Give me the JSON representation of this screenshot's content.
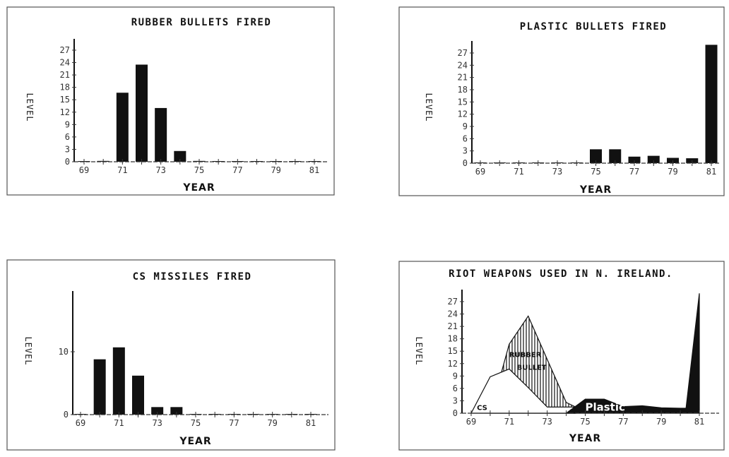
{
  "chart_data": [
    {
      "type": "bar",
      "title": "RUBBER BULLETS FIRED",
      "xlabel": "YEAR",
      "ylabel": "LEVEL",
      "x": [
        69,
        70,
        71,
        72,
        73,
        74,
        75,
        76,
        77,
        78,
        79,
        80,
        81
      ],
      "values": [
        0,
        0.2,
        16.7,
        23.5,
        13,
        2.6,
        0.2,
        0,
        0,
        0,
        0,
        0,
        0
      ],
      "xticks": [
        "69",
        "71",
        "73",
        "75",
        "77",
        "79",
        "81"
      ],
      "yticks": [
        "0",
        "3",
        "6",
        "9",
        "12",
        "15",
        "18",
        "21",
        "24",
        "27"
      ],
      "xlim": [
        69,
        81
      ],
      "ylim": [
        0,
        30
      ],
      "grid": false,
      "color": "#111111"
    },
    {
      "type": "bar",
      "title": "PLASTIC BULLETS FIRED",
      "xlabel": "YEAR",
      "ylabel": "LEVEL",
      "x": [
        69,
        70,
        71,
        72,
        73,
        74,
        75,
        76,
        77,
        78,
        79,
        80,
        81
      ],
      "values": [
        0,
        0,
        0,
        0,
        0.1,
        0.1,
        3.4,
        3.4,
        1.6,
        1.8,
        1.3,
        1.2,
        29
      ],
      "xticks": [
        "69",
        "71",
        "73",
        "75",
        "77",
        "79",
        "81"
      ],
      "yticks": [
        "0",
        "3",
        "6",
        "9",
        "12",
        "15",
        "18",
        "21",
        "24",
        "27"
      ],
      "xlim": [
        69,
        81
      ],
      "ylim": [
        0,
        30
      ],
      "grid": false,
      "color": "#111111"
    },
    {
      "type": "bar",
      "title": "CS MISSILES FIRED",
      "xlabel": "YEAR",
      "ylabel": "LEVEL",
      "x": [
        69,
        70,
        71,
        72,
        73,
        74,
        75,
        76,
        77,
        78,
        79,
        80,
        81
      ],
      "values": [
        0,
        8.8,
        10.7,
        6.2,
        1.2,
        1.2,
        0.1,
        0,
        0,
        0,
        0,
        0,
        0
      ],
      "xticks": [
        "69",
        "71",
        "73",
        "75",
        "77",
        "79",
        "81"
      ],
      "yticks": [
        "0",
        "10"
      ],
      "xlim": [
        69,
        81
      ],
      "ylim": [
        0,
        20
      ],
      "grid": false,
      "color": "#111111"
    },
    {
      "type": "area",
      "title": "RIOT WEAPONS USED IN N. IRELAND.",
      "xlabel": "YEAR",
      "ylabel": "LEVEL",
      "xticks": [
        "69",
        "71",
        "73",
        "75",
        "77",
        "79",
        "81"
      ],
      "yticks": [
        "0",
        "3",
        "6",
        "9",
        "12",
        "15",
        "18",
        "21",
        "24",
        "27"
      ],
      "xlim": [
        69,
        81
      ],
      "ylim": [
        0,
        30
      ],
      "grid": false,
      "series": [
        {
          "name": "RUBBER BULLET",
          "x": [
            70,
            71,
            72,
            73,
            74,
            74.5
          ],
          "values": [
            0,
            16.7,
            23.5,
            13,
            2.6,
            1.5
          ],
          "fill": "hatched"
        },
        {
          "name": "CS",
          "x": [
            69,
            70,
            71,
            72,
            73,
            74.5
          ],
          "values": [
            0,
            8.8,
            10.7,
            6.2,
            1.5,
            1.5
          ],
          "fill": "white"
        },
        {
          "name": "Plastic",
          "x": [
            74,
            75,
            76,
            77,
            78,
            79,
            80,
            80.3,
            81
          ],
          "values": [
            0,
            3.4,
            3.4,
            1.6,
            1.8,
            1.3,
            1.2,
            1.2,
            29
          ],
          "fill": "black"
        }
      ],
      "annotations": [
        "CS",
        "RUBBER",
        "BULLET",
        "Plastic"
      ]
    }
  ]
}
